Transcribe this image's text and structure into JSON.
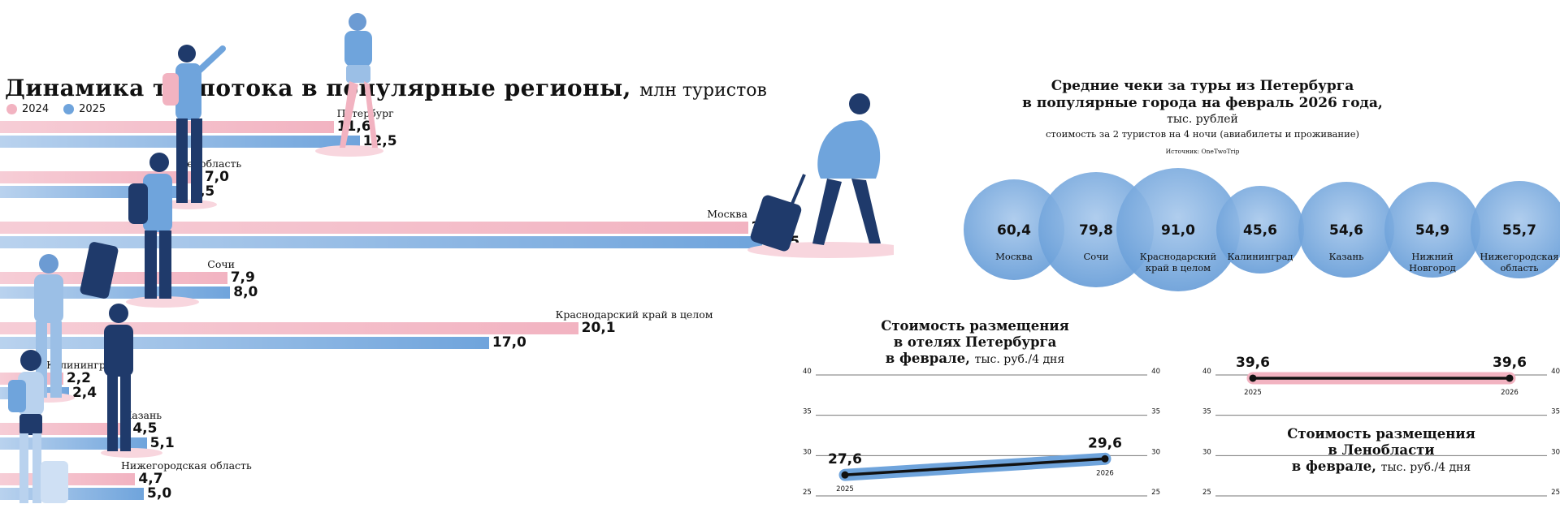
{
  "main_chart": {
    "title": "Динамика турпотока в популярные регионы,",
    "unit": "млн туристов",
    "legend": [
      {
        "label": "2024",
        "color": "#f2b3c1"
      },
      {
        "label": "2025",
        "color": "#6fa4dc"
      }
    ]
  },
  "checks": {
    "title_line1": "Средние чеки за туры из Петербурга",
    "title_line2": "в популярные города на февраль 2026 года,",
    "unit": "тыс. рублей",
    "subtitle": "стоимость за 2 туристов на 4 ночи (авиабилеты и проживание)",
    "source": "Источник: OneTwoTrip"
  },
  "hotel_spb": {
    "title_line1": "Стоимость размещения",
    "title_line2": "в отелях Петербурга",
    "title_line3": "в феврале,",
    "unit": "тыс. руб./4 дня"
  },
  "hotel_lo": {
    "title_line1": "Стоимость размещения",
    "title_line2": "в Ленобласти",
    "title_line3": "в феврале,",
    "unit": "тыс. руб./4 дня"
  },
  "chart_data": [
    {
      "type": "bar",
      "title": "Динамика турпотока в популярные регионы, млн туристов",
      "categories": [
        "Петербург",
        "Ленобласть",
        "Москва",
        "Сочи",
        "Краснодарский край в целом",
        "Калининград",
        "Казань",
        "Нижегородская область"
      ],
      "series": [
        {
          "name": "2024",
          "values": [
            11.6,
            7.0,
            26.0,
            7.9,
            20.1,
            2.2,
            4.5,
            4.7
          ],
          "labels": [
            "11,6",
            "7,0",
            "26,0",
            "7,9",
            "20,1",
            "2,2",
            "4,5",
            "4,7"
          ]
        },
        {
          "name": "2025",
          "values": [
            12.5,
            6.5,
            26.5,
            8.0,
            17.0,
            2.4,
            5.1,
            5.0
          ],
          "labels": [
            "12,5",
            "6,5",
            "26,5",
            "8,0",
            "17,0",
            "2,4",
            "5,1",
            "5,0"
          ]
        }
      ],
      "orientation": "horizontal",
      "xlim": [
        0,
        32
      ],
      "grid": false
    },
    {
      "type": "scatter",
      "title": "Средние чеки за туры из Петербурга в популярные города на февраль 2026 года, тыс. рублей",
      "categories": [
        "Москва",
        "Сочи",
        "Краснодарский край в целом",
        "Калининград",
        "Казань",
        "Нижний Новгород",
        "Нижегородская область"
      ],
      "label_lines": [
        [
          "Москва"
        ],
        [
          "Сочи"
        ],
        [
          "Краснодарский",
          "край в целом"
        ],
        [
          "Калининград"
        ],
        [
          "Казань"
        ],
        [
          "Нижний",
          "Новгород"
        ],
        [
          "Нижегородская",
          "область"
        ]
      ],
      "values": [
        60.4,
        79.8,
        91.0,
        45.6,
        54.6,
        54.9,
        55.7
      ],
      "labels": [
        "60,4",
        "79,8",
        "91,0",
        "45,6",
        "54,6",
        "54,9",
        "55,7"
      ]
    },
    {
      "type": "line",
      "title": "Стоимость размещения в отелях Петербурга в феврале, тыс. руб./4 дня",
      "x": [
        "2025",
        "2026"
      ],
      "values": [
        27.6,
        29.6
      ],
      "labels": [
        "27,6",
        "29,6"
      ],
      "ylim": [
        25,
        40
      ],
      "yticks": [
        25,
        30,
        35,
        40
      ],
      "grid": true,
      "color": "#6fa4dc"
    },
    {
      "type": "line",
      "title": "Стоимость размещения в Ленобласти в феврале, тыс. руб./4 дня",
      "x": [
        "2025",
        "2026"
      ],
      "values": [
        39.6,
        39.6
      ],
      "labels": [
        "39,6",
        "39,6"
      ],
      "ylim": [
        25,
        40
      ],
      "yticks": [
        25,
        30,
        35,
        40
      ],
      "grid": true,
      "color": "#f2b3c1"
    }
  ]
}
